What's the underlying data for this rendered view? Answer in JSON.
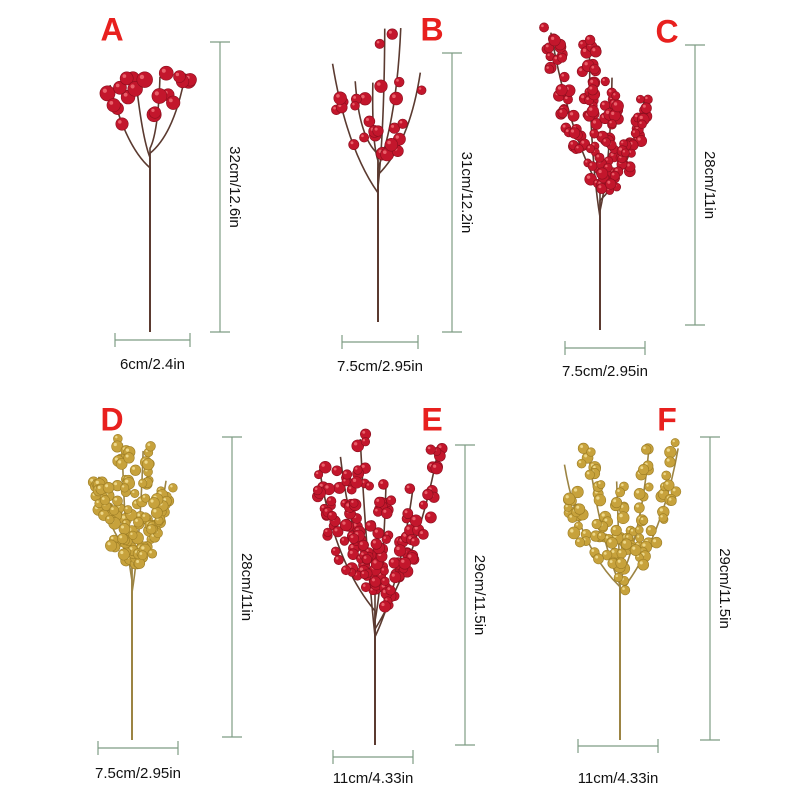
{
  "items": [
    {
      "letter": "A",
      "height": "32cm/12.6in",
      "width": "6cm/2.4in"
    },
    {
      "letter": "B",
      "height": "31cm/12.2in",
      "width": "7.5cm/2.95in"
    },
    {
      "letter": "C",
      "height": "28cm/11in",
      "width": "7.5cm/2.95in"
    },
    {
      "letter": "D",
      "height": "28cm/11in",
      "width": "7.5cm/2.95in"
    },
    {
      "letter": "E",
      "height": "29cm/11.5in",
      "width": "11cm/4.33in"
    },
    {
      "letter": "F",
      "height": "29cm/11.5in",
      "width": "11cm/4.33in"
    }
  ]
}
